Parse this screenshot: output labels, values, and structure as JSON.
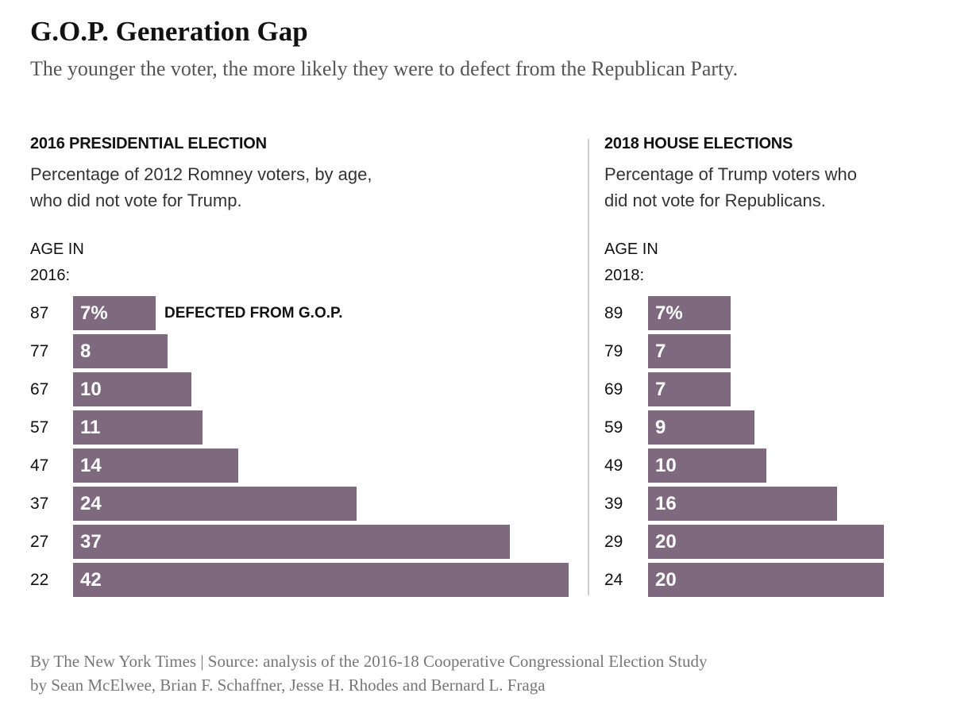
{
  "title": "G.O.P. Generation Gap",
  "subtitle": "The younger the voter, the more likely they were to defect from the Republican Party.",
  "footer": {
    "line1": "By The New York Times | Source: analysis of the 2016-18 Cooperative Congressional Election Study",
    "line2": "by Sean McElwee, Brian F. Schaffner, Jesse H. Rhodes and Bernard L. Fraga"
  },
  "colors": {
    "bar": "#7f697f",
    "bar_text": "#ffffff",
    "divider": "#cfcfcf"
  },
  "chart_data": [
    {
      "type": "bar",
      "orientation": "horizontal",
      "title": "2016 PRESIDENTIAL ELECTION",
      "description_line1": "Percentage of 2012 Romney voters, by age,",
      "description_line2": "who did not vote for Trump.",
      "axis_label_line1": "AGE IN",
      "axis_label_line2": "2016:",
      "annotation": "DEFECTED FROM G.O.P.",
      "categories": [
        "87",
        "77",
        "67",
        "57",
        "47",
        "37",
        "27",
        "22"
      ],
      "values": [
        7,
        8,
        10,
        11,
        14,
        24,
        37,
        42
      ],
      "value_labels": [
        "7%",
        "8",
        "10",
        "11",
        "14",
        "24",
        "37",
        "42"
      ],
      "xlim": [
        0,
        42
      ]
    },
    {
      "type": "bar",
      "orientation": "horizontal",
      "title": "2018 HOUSE ELECTIONS",
      "description_line1": "Percentage of Trump voters who",
      "description_line2": "did not vote for Republicans.",
      "axis_label_line1": "AGE IN",
      "axis_label_line2": "2018:",
      "categories": [
        "89",
        "79",
        "69",
        "59",
        "49",
        "39",
        "29",
        "24"
      ],
      "values": [
        7,
        7,
        7,
        9,
        10,
        16,
        20,
        20
      ],
      "value_labels": [
        "7%",
        "7",
        "7",
        "9",
        "10",
        "16",
        "20",
        "20"
      ],
      "xlim": [
        0,
        20
      ]
    }
  ]
}
